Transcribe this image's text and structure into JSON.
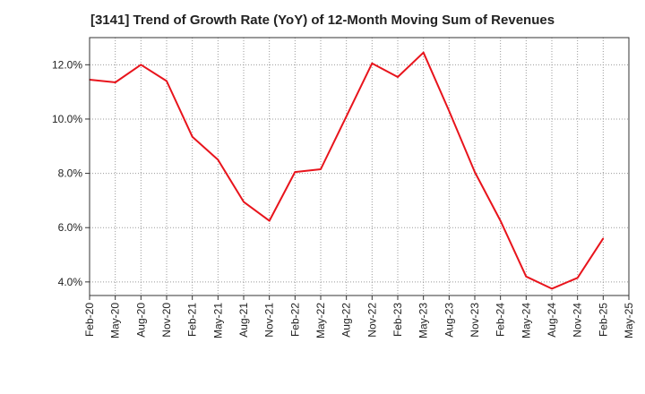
{
  "chart_data": {
    "type": "line",
    "title": "[3141]  Trend of Growth Rate (YoY) of 12-Month Moving Sum of Revenues",
    "xlabel": "",
    "ylabel": "",
    "x": [
      "Feb-20",
      "May-20",
      "Aug-20",
      "Nov-20",
      "Feb-21",
      "May-21",
      "Aug-21",
      "Nov-21",
      "Feb-22",
      "May-22",
      "Aug-22",
      "Nov-22",
      "Feb-23",
      "May-23",
      "Aug-23",
      "Nov-23",
      "Feb-24",
      "May-24",
      "Aug-24",
      "Nov-24",
      "Feb-25",
      "May-25"
    ],
    "series": [
      {
        "color": "#e8141c",
        "values": [
          11.45,
          11.35,
          12.0,
          11.4,
          9.35,
          8.5,
          6.95,
          6.25,
          8.05,
          8.15,
          10.1,
          12.05,
          11.55,
          12.45,
          10.3,
          8.05,
          6.25,
          4.2,
          3.75,
          4.15,
          5.6,
          null
        ]
      }
    ],
    "y_ticks": [
      "4.0%",
      "6.0%",
      "8.0%",
      "10.0%",
      "12.0%"
    ],
    "y_tick_values": [
      4,
      6,
      8,
      10,
      12
    ],
    "ylim": [
      3.5,
      13.0
    ],
    "grid": true,
    "legend": "none"
  }
}
